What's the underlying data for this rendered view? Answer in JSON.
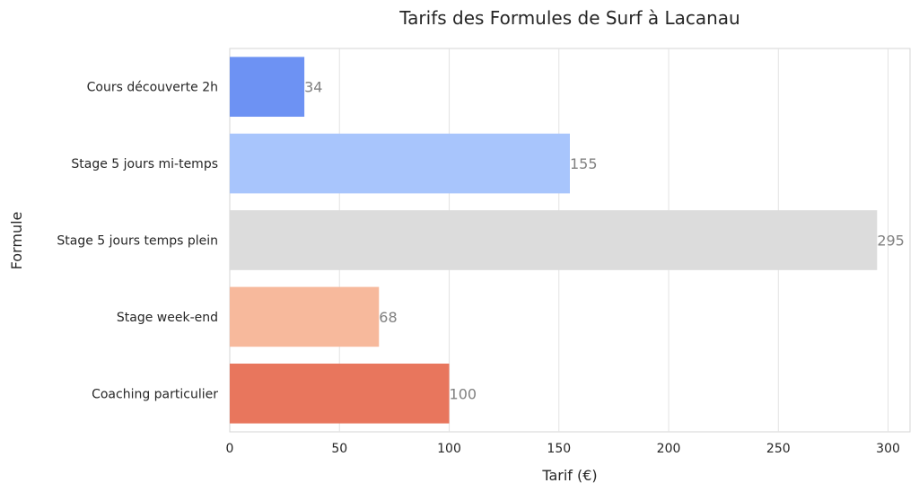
{
  "chart_data": {
    "type": "bar",
    "orientation": "horizontal",
    "title": "Tarifs des Formules de Surf à Lacanau",
    "xlabel": "Tarif (€)",
    "ylabel": "Formule",
    "categories": [
      "Cours découverte 2h",
      "Stage 5 jours mi-temps",
      "Stage 5 jours temps plein",
      "Stage week-end",
      "Coaching particulier"
    ],
    "values": [
      34,
      155,
      295,
      68,
      100
    ],
    "colors": [
      "#6d92f3",
      "#a8c5fc",
      "#dcdcdc",
      "#f7b99c",
      "#e8765d"
    ],
    "xlim": [
      0,
      310
    ],
    "xticks": [
      0,
      50,
      100,
      150,
      200,
      250,
      300
    ],
    "grid": true,
    "data_labels": true
  }
}
